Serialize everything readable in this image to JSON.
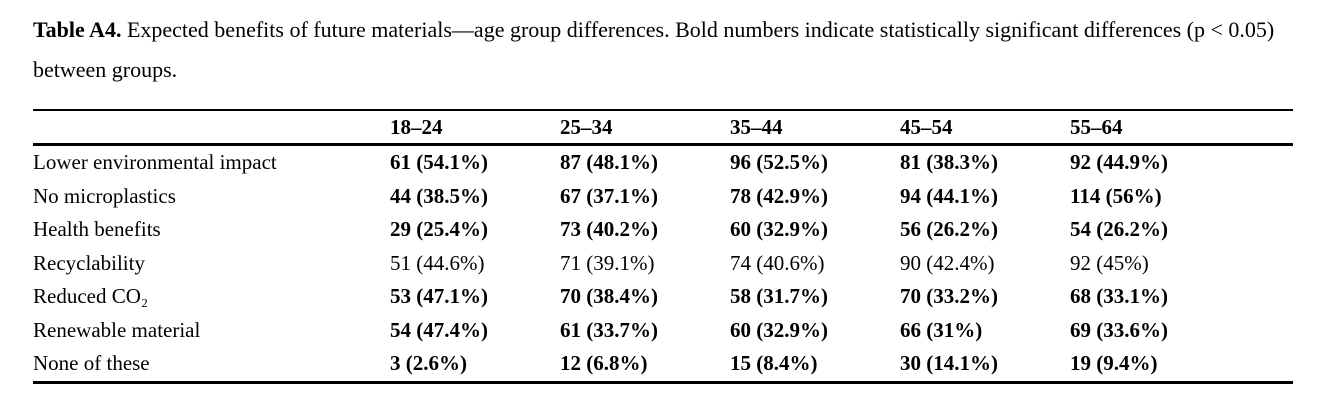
{
  "caption": {
    "label": "Table A4.",
    "text": "Expected benefits of future materials—age group differences. Bold numbers indicate statistically significant differences (p < 0.05) between groups."
  },
  "table": {
    "columns": [
      "",
      "18–24",
      "25–34",
      "35–44",
      "45–54",
      "55–64"
    ],
    "rows": [
      {
        "label": "Lower environmental impact",
        "significant": true,
        "values": [
          "61 (54.1%)",
          "87 (48.1%)",
          "96 (52.5%)",
          "81 (38.3%)",
          "92 (44.9%)"
        ]
      },
      {
        "label": "No microplastics",
        "significant": true,
        "values": [
          "44 (38.5%)",
          "67 (37.1%)",
          "78 (42.9%)",
          "94 (44.1%)",
          "114 (56%)"
        ]
      },
      {
        "label": "Health benefits",
        "significant": true,
        "values": [
          "29 (25.4%)",
          "73 (40.2%)",
          "60 (32.9%)",
          "56 (26.2%)",
          "54 (26.2%)"
        ]
      },
      {
        "label": "Recyclability",
        "significant": false,
        "values": [
          "51 (44.6%)",
          "71 (39.1%)",
          "74 (40.6%)",
          "90 (42.4%)",
          "92 (45%)"
        ]
      },
      {
        "label": "Reduced CO₂",
        "significant": true,
        "values": [
          "53 (47.1%)",
          "70 (38.4%)",
          "58 (31.7%)",
          "70 (33.2%)",
          "68 (33.1%)"
        ]
      },
      {
        "label": "Renewable material",
        "significant": true,
        "values": [
          "54 (47.4%)",
          "61 (33.7%)",
          "60 (32.9%)",
          "66 (31%)",
          "69 (33.6%)"
        ]
      },
      {
        "label": "None of these",
        "significant": true,
        "values": [
          "3 (2.6%)",
          "12 (6.8%)",
          "15 (8.4%)",
          "30 (14.1%)",
          "19 (9.4%)"
        ]
      }
    ]
  },
  "colors": {
    "text": "#000000",
    "background": "#ffffff",
    "rule": "#000000"
  }
}
